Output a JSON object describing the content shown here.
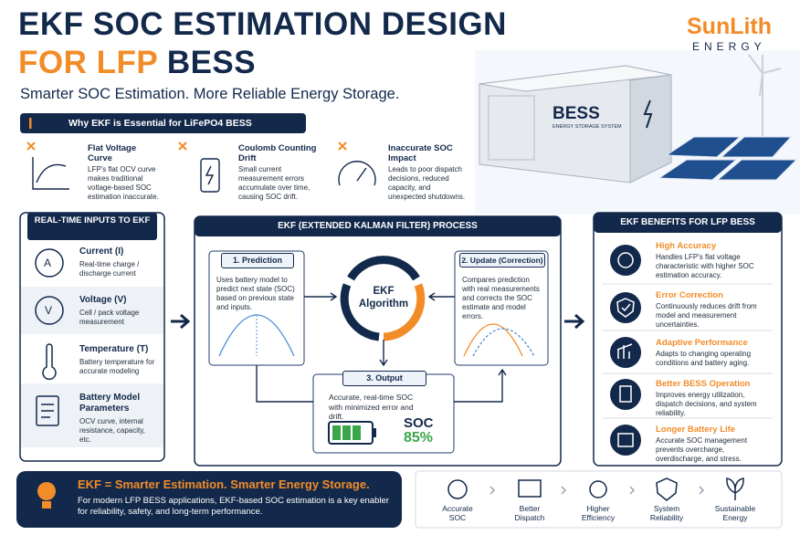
{
  "header": {
    "title_line1": "EKF SOC ESTIMATION DESIGN",
    "title_line2_accent": "FOR LFP",
    "title_line2_rest": "BESS",
    "subtitle": "Smarter SOC Estimation. More Reliable Energy Storage.",
    "logo_main": "SunLith",
    "logo_sub": "ENERGY"
  },
  "hero": {
    "container_label": "BESS",
    "container_sublabel": "ENERGY STORAGE SYSTEM"
  },
  "why": {
    "title": "Why EKF is Essential for LiFePO4 BESS",
    "items": [
      {
        "title": "Flat Voltage Curve",
        "text": "LFP's flat OCV curve makes traditional voltage-based SOC estimation inaccurate."
      },
      {
        "title": "Coulomb Counting Drift",
        "text": "Small current measurement errors accumulate over time, causing SOC drift."
      },
      {
        "title": "Inaccurate SOC Impact",
        "text": "Leads to poor dispatch decisions, reduced capacity, and unexpected shutdowns."
      }
    ]
  },
  "inputs": {
    "title": "REAL-TIME INPUTS TO EKF",
    "items": [
      {
        "icon": "A",
        "title": "Current (I)",
        "text": "Real-time charge / discharge current"
      },
      {
        "icon": "V",
        "title": "Voltage (V)",
        "text": "Cell / pack voltage measurement"
      },
      {
        "title": "Temperature (T)",
        "text": "Battery temperature for accurate modeling"
      },
      {
        "title": "Battery Model Parameters",
        "text": "OCV curve, internal resistance, capacity, etc."
      }
    ]
  },
  "process": {
    "title": "EKF (EXTENDED KALMAN FILTER) PROCESS",
    "center": "EKF Algorithm",
    "prediction": {
      "title": "1. Prediction",
      "text": "Uses battery model to predict next state (SOC) based on previous state and inputs."
    },
    "update": {
      "title": "2. Update (Correction)",
      "text": "Compares prediction with real measurements and corrects the SOC estimate and model errors."
    },
    "output": {
      "title": "3. Output",
      "text": "Accurate, real-time SOC with minimized error and drift.",
      "soc_label": "SOC",
      "soc_value": "85%"
    }
  },
  "benefits": {
    "title": "EKF BENEFITS FOR LFP BESS",
    "items": [
      {
        "title": "High Accuracy",
        "text": "Handles LFP's flat voltage characteristic with higher SOC estimation accuracy."
      },
      {
        "title": "Error Correction",
        "text": "Continuously reduces drift from model and measurement uncertainties."
      },
      {
        "title": "Adaptive Performance",
        "text": "Adapts to changing operating conditions and battery aging."
      },
      {
        "title": "Better BESS Operation",
        "text": "Improves energy utilization, dispatch decisions, and system reliability."
      },
      {
        "title": "Longer Battery Life",
        "text": "Accurate SOC management prevents overcharge, overdischarge, and stress."
      }
    ]
  },
  "footer": {
    "title": "EKF = Smarter Estimation. Smarter Energy Storage.",
    "text": "For modern LFP BESS applications, EKF-based SOC estimation is a key enabler for reliability, safety, and long-term performance.",
    "items": [
      "Accurate SOC",
      "Better Dispatch",
      "Higher Efficiency",
      "System Reliability",
      "Sustainable Energy"
    ]
  }
}
